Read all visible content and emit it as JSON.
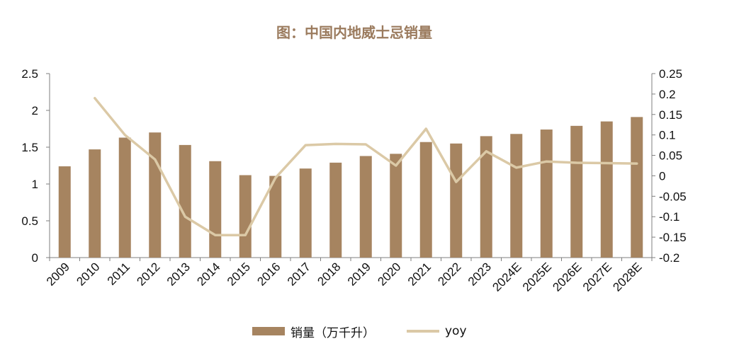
{
  "title": "图：中国内地威士忌销量",
  "colors": {
    "bar": "#a68460",
    "line": "#dbc9a6",
    "axis": "#7f7f7f",
    "title": "#9b7b5e"
  },
  "chart_data": {
    "type": "bar",
    "title": "图：中国内地威士忌销量",
    "categories": [
      "2009",
      "2010",
      "2011",
      "2012",
      "2013",
      "2014",
      "2015",
      "2016",
      "2017",
      "2018",
      "2019",
      "2020",
      "2021",
      "2022",
      "2023",
      "2024E",
      "2025E",
      "2026E",
      "2027E",
      "2028E"
    ],
    "series": [
      {
        "name": "销量（万千升）",
        "type": "bar",
        "axis": "left",
        "values": [
          1.24,
          1.47,
          1.63,
          1.7,
          1.53,
          1.31,
          1.12,
          1.11,
          1.21,
          1.29,
          1.38,
          1.41,
          1.57,
          1.55,
          1.65,
          1.68,
          1.74,
          1.79,
          1.85,
          1.91
        ]
      },
      {
        "name": "yoy",
        "type": "line",
        "axis": "right",
        "values": [
          null,
          0.19,
          0.1,
          0.04,
          -0.1,
          -0.145,
          -0.145,
          -0.005,
          0.075,
          0.078,
          0.077,
          0.025,
          0.115,
          -0.015,
          0.06,
          0.02,
          0.035,
          0.032,
          0.031,
          0.03
        ]
      }
    ],
    "y_left": {
      "ylim": [
        0,
        2.5
      ],
      "ticks": [
        "0",
        "0.5",
        "1",
        "1.5",
        "2",
        "2.5"
      ]
    },
    "y_right": {
      "ylim": [
        -0.2,
        0.25
      ],
      "ticks": [
        "-0.2",
        "-0.15",
        "-0.1",
        "-0.05",
        "0",
        "0.05",
        "0.1",
        "0.15",
        "0.2",
        "0.25"
      ]
    },
    "grid": false,
    "legend": "bottom-center"
  },
  "legend": {
    "bar_label": "销量（万千升）",
    "line_label": "yoy"
  }
}
